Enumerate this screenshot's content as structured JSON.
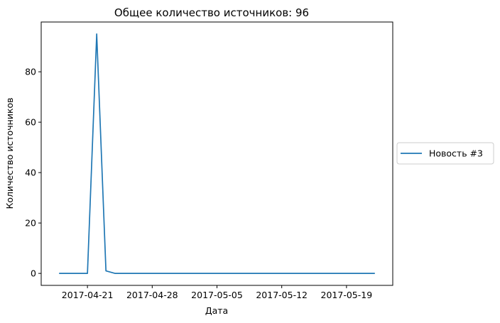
{
  "chart_data": {
    "type": "line",
    "title": "Общее количество источников: 96",
    "xlabel": "Дата",
    "ylabel": "Количество источников",
    "x": [
      "2017-04-18",
      "2017-04-19",
      "2017-04-20",
      "2017-04-21",
      "2017-04-22",
      "2017-04-23",
      "2017-04-24",
      "2017-04-25",
      "2017-04-26",
      "2017-04-27",
      "2017-04-28",
      "2017-04-29",
      "2017-04-30",
      "2017-05-01",
      "2017-05-02",
      "2017-05-03",
      "2017-05-04",
      "2017-05-05",
      "2017-05-06",
      "2017-05-07",
      "2017-05-08",
      "2017-05-09",
      "2017-05-10",
      "2017-05-11",
      "2017-05-12",
      "2017-05-13",
      "2017-05-14",
      "2017-05-15",
      "2017-05-16",
      "2017-05-17",
      "2017-05-18",
      "2017-05-19",
      "2017-05-20",
      "2017-05-21",
      "2017-05-22"
    ],
    "series": [
      {
        "name": "Новость #3",
        "color": "#1f77b4",
        "values": [
          0,
          0,
          0,
          0,
          95,
          1,
          0,
          0,
          0,
          0,
          0,
          0,
          0,
          0,
          0,
          0,
          0,
          0,
          0,
          0,
          0,
          0,
          0,
          0,
          0,
          0,
          0,
          0,
          0,
          0,
          0,
          0,
          0,
          0,
          0
        ]
      }
    ],
    "xticks": [
      "2017-04-21",
      "2017-04-28",
      "2017-05-05",
      "2017-05-12",
      "2017-05-19"
    ],
    "yticks": [
      0,
      20,
      40,
      60,
      80
    ],
    "xlim": [
      "2017-04-16",
      "2017-05-24"
    ],
    "ylim": [
      -4.75,
      99.75
    ],
    "grid": false,
    "legend_position": "outside-right"
  }
}
